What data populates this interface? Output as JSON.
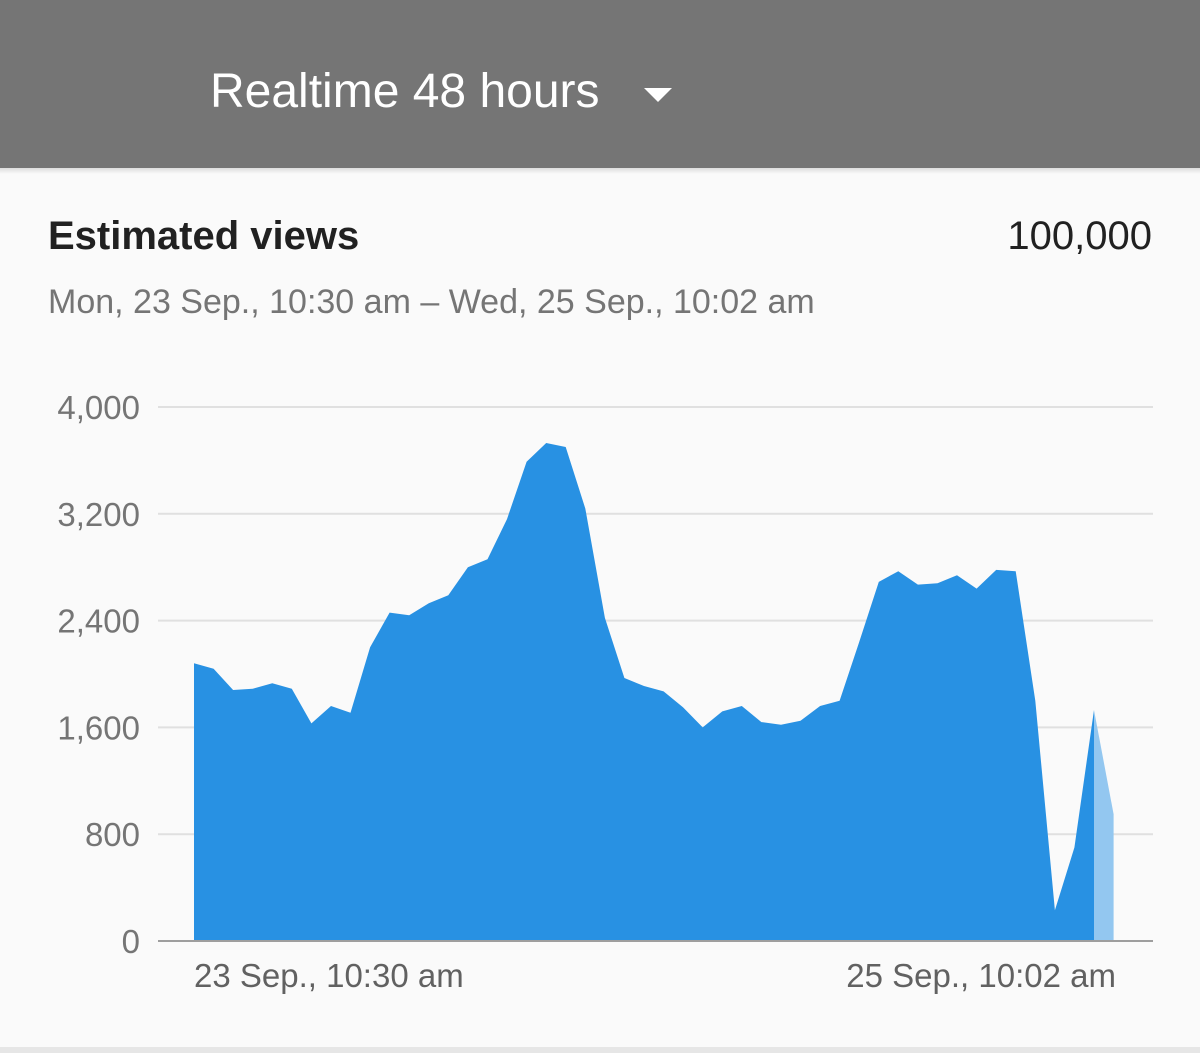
{
  "header": {
    "dropdown_label": "Realtime 48 hours"
  },
  "card": {
    "metric_title": "Estimated views",
    "metric_total": "100,000",
    "date_range": "Mon, 23 Sep., 10:30 am – Wed, 25 Sep., 10:02 am"
  },
  "colors": {
    "header_bg": "#757575",
    "series_fill": "#2891e3",
    "partial_fill": "#93c7f0"
  },
  "chart_data": {
    "type": "area",
    "ylim": [
      0,
      4000
    ],
    "y_ticks": [
      0,
      800,
      1600,
      2400,
      3200,
      4000
    ],
    "y_tick_labels": [
      "0",
      "800",
      "1,600",
      "2,400",
      "3,200",
      "4,000"
    ],
    "x_labels": [
      "23 Sep., 10:30 am",
      "25 Sep., 10:02 am"
    ],
    "grid": true,
    "series": [
      {
        "values": [
          2080,
          2040,
          1880,
          1890,
          1930,
          1890,
          1630,
          1760,
          1710,
          2200,
          2460,
          2440,
          2530,
          2590,
          2800,
          2860,
          3160,
          3590,
          3730,
          3700,
          3240,
          2420,
          1970,
          1910,
          1870,
          1750,
          1600,
          1720,
          1760,
          1640,
          1620,
          1650,
          1760,
          1800,
          2240,
          2690,
          2770,
          2670,
          2680,
          2740,
          2640,
          2780,
          2770,
          1800,
          230,
          700,
          1730
        ]
      }
    ],
    "partial_segment": {
      "values": [
        1730,
        950
      ]
    }
  }
}
